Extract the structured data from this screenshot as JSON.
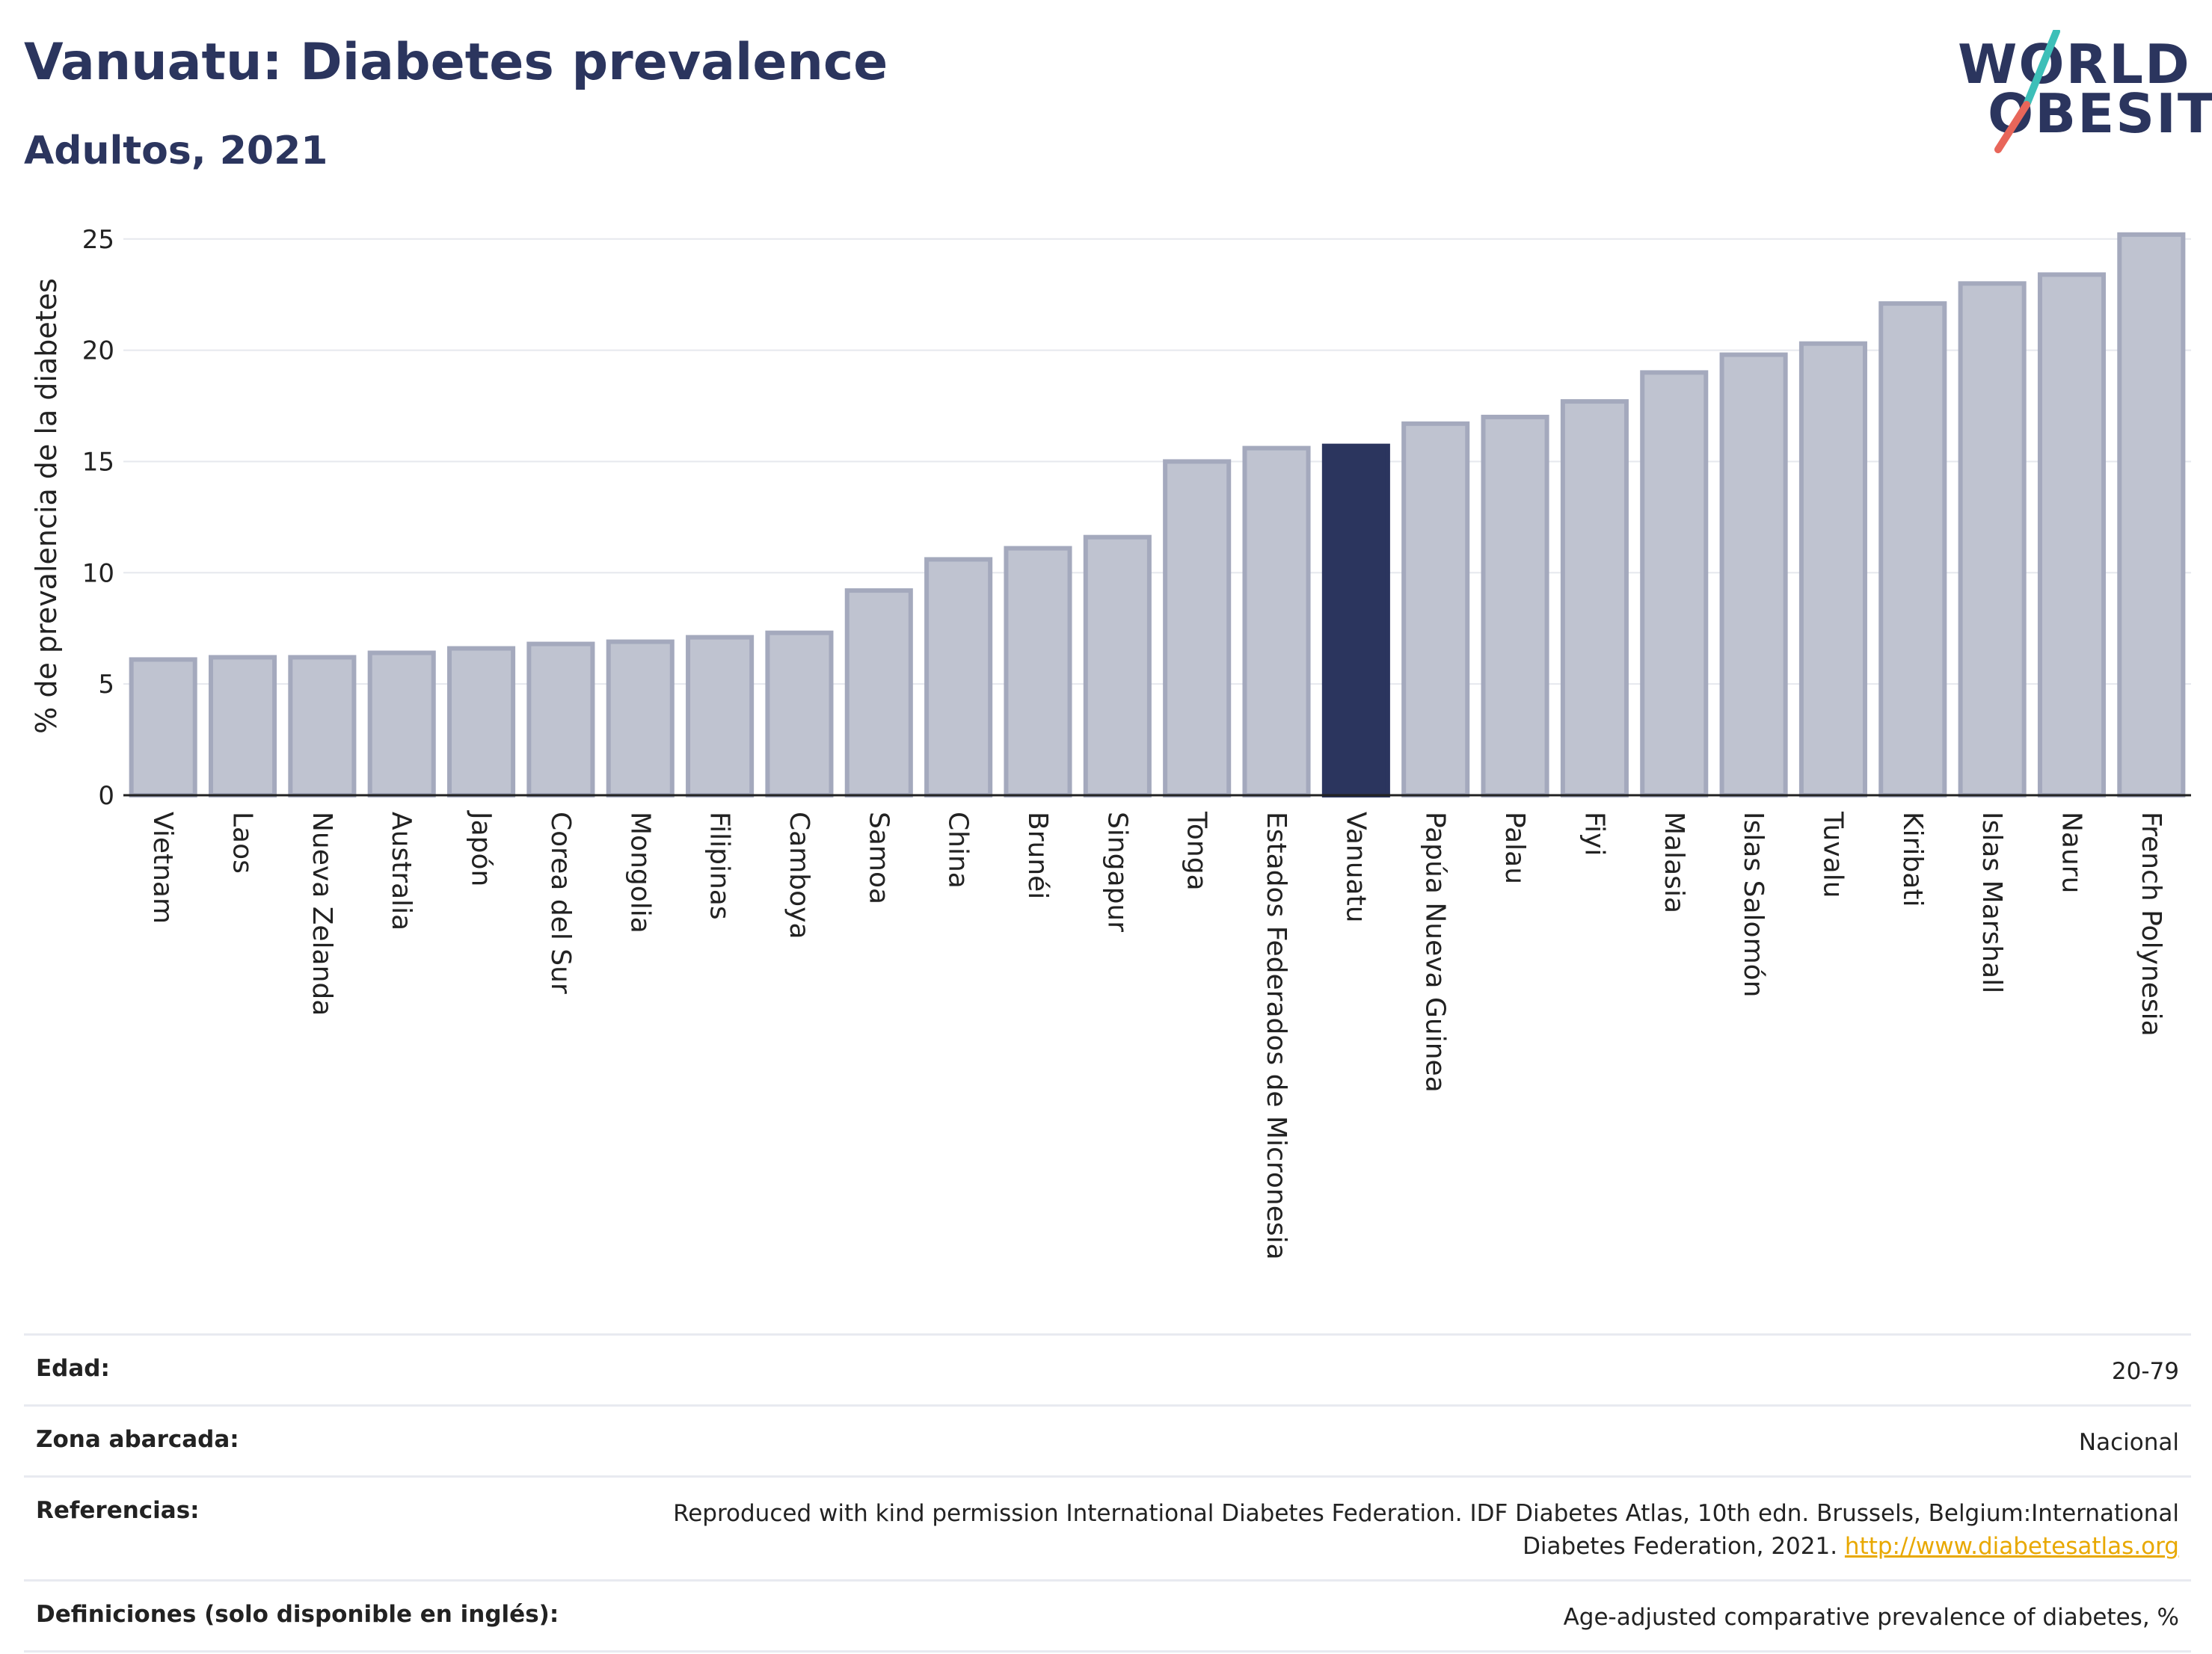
{
  "header": {
    "title": "Vanuatu: Diabetes prevalence",
    "subtitle": "Adultos, 2021"
  },
  "logo": {
    "line1": "WORLD",
    "line2": "OBESITY",
    "accent_colors": [
      "#3dbfb8",
      "#e8665a"
    ]
  },
  "chart_data": {
    "type": "bar",
    "ylabel": "% de prevalencia de la diabetes",
    "ylim": [
      0,
      26
    ],
    "yticks": [
      0,
      5,
      10,
      15,
      20,
      25
    ],
    "grid": true,
    "highlight": "Vanuatu",
    "highlight_color": "#2b355e",
    "bar_color": "#bfc3d0",
    "bar_edge_color": "#a4a9bd",
    "categories": [
      "Vietnam",
      "Laos",
      "Nueva Zelanda",
      "Australia",
      "Japón",
      "Corea del Sur",
      "Mongolia",
      "Filipinas",
      "Camboya",
      "Samoa",
      "China",
      "Brunéi",
      "Singapur",
      "Tonga",
      "Estados Federados de Micronesia",
      "Vanuatu",
      "Papúa Nueva Guinea",
      "Palau",
      "Fiyi",
      "Malasia",
      "Islas Salomón",
      "Tuvalu",
      "Kiribati",
      "Islas Marshall",
      "Nauru",
      "French Polynesia"
    ],
    "values": [
      6.1,
      6.2,
      6.2,
      6.4,
      6.6,
      6.8,
      6.9,
      7.1,
      7.3,
      9.2,
      10.6,
      11.1,
      11.6,
      15.0,
      15.6,
      15.7,
      16.7,
      17.0,
      17.7,
      19.0,
      19.8,
      20.3,
      22.1,
      23.0,
      23.4,
      25.2
    ]
  },
  "meta": [
    {
      "label": "Edad:",
      "value": "20-79"
    },
    {
      "label": "Zona abarcada:",
      "value": "Nacional"
    },
    {
      "label": "Referencias:",
      "value": "Reproduced with kind permission International Diabetes Federation.  IDF Diabetes Atlas, 10th edn. Brussels, Belgium:International Diabetes Federation, 2021.",
      "link": "http://www.diabetesatlas.org"
    },
    {
      "label": "Definiciones (solo disponible en inglés):",
      "value": "Age-adjusted comparative prevalence of diabetes, %"
    }
  ]
}
